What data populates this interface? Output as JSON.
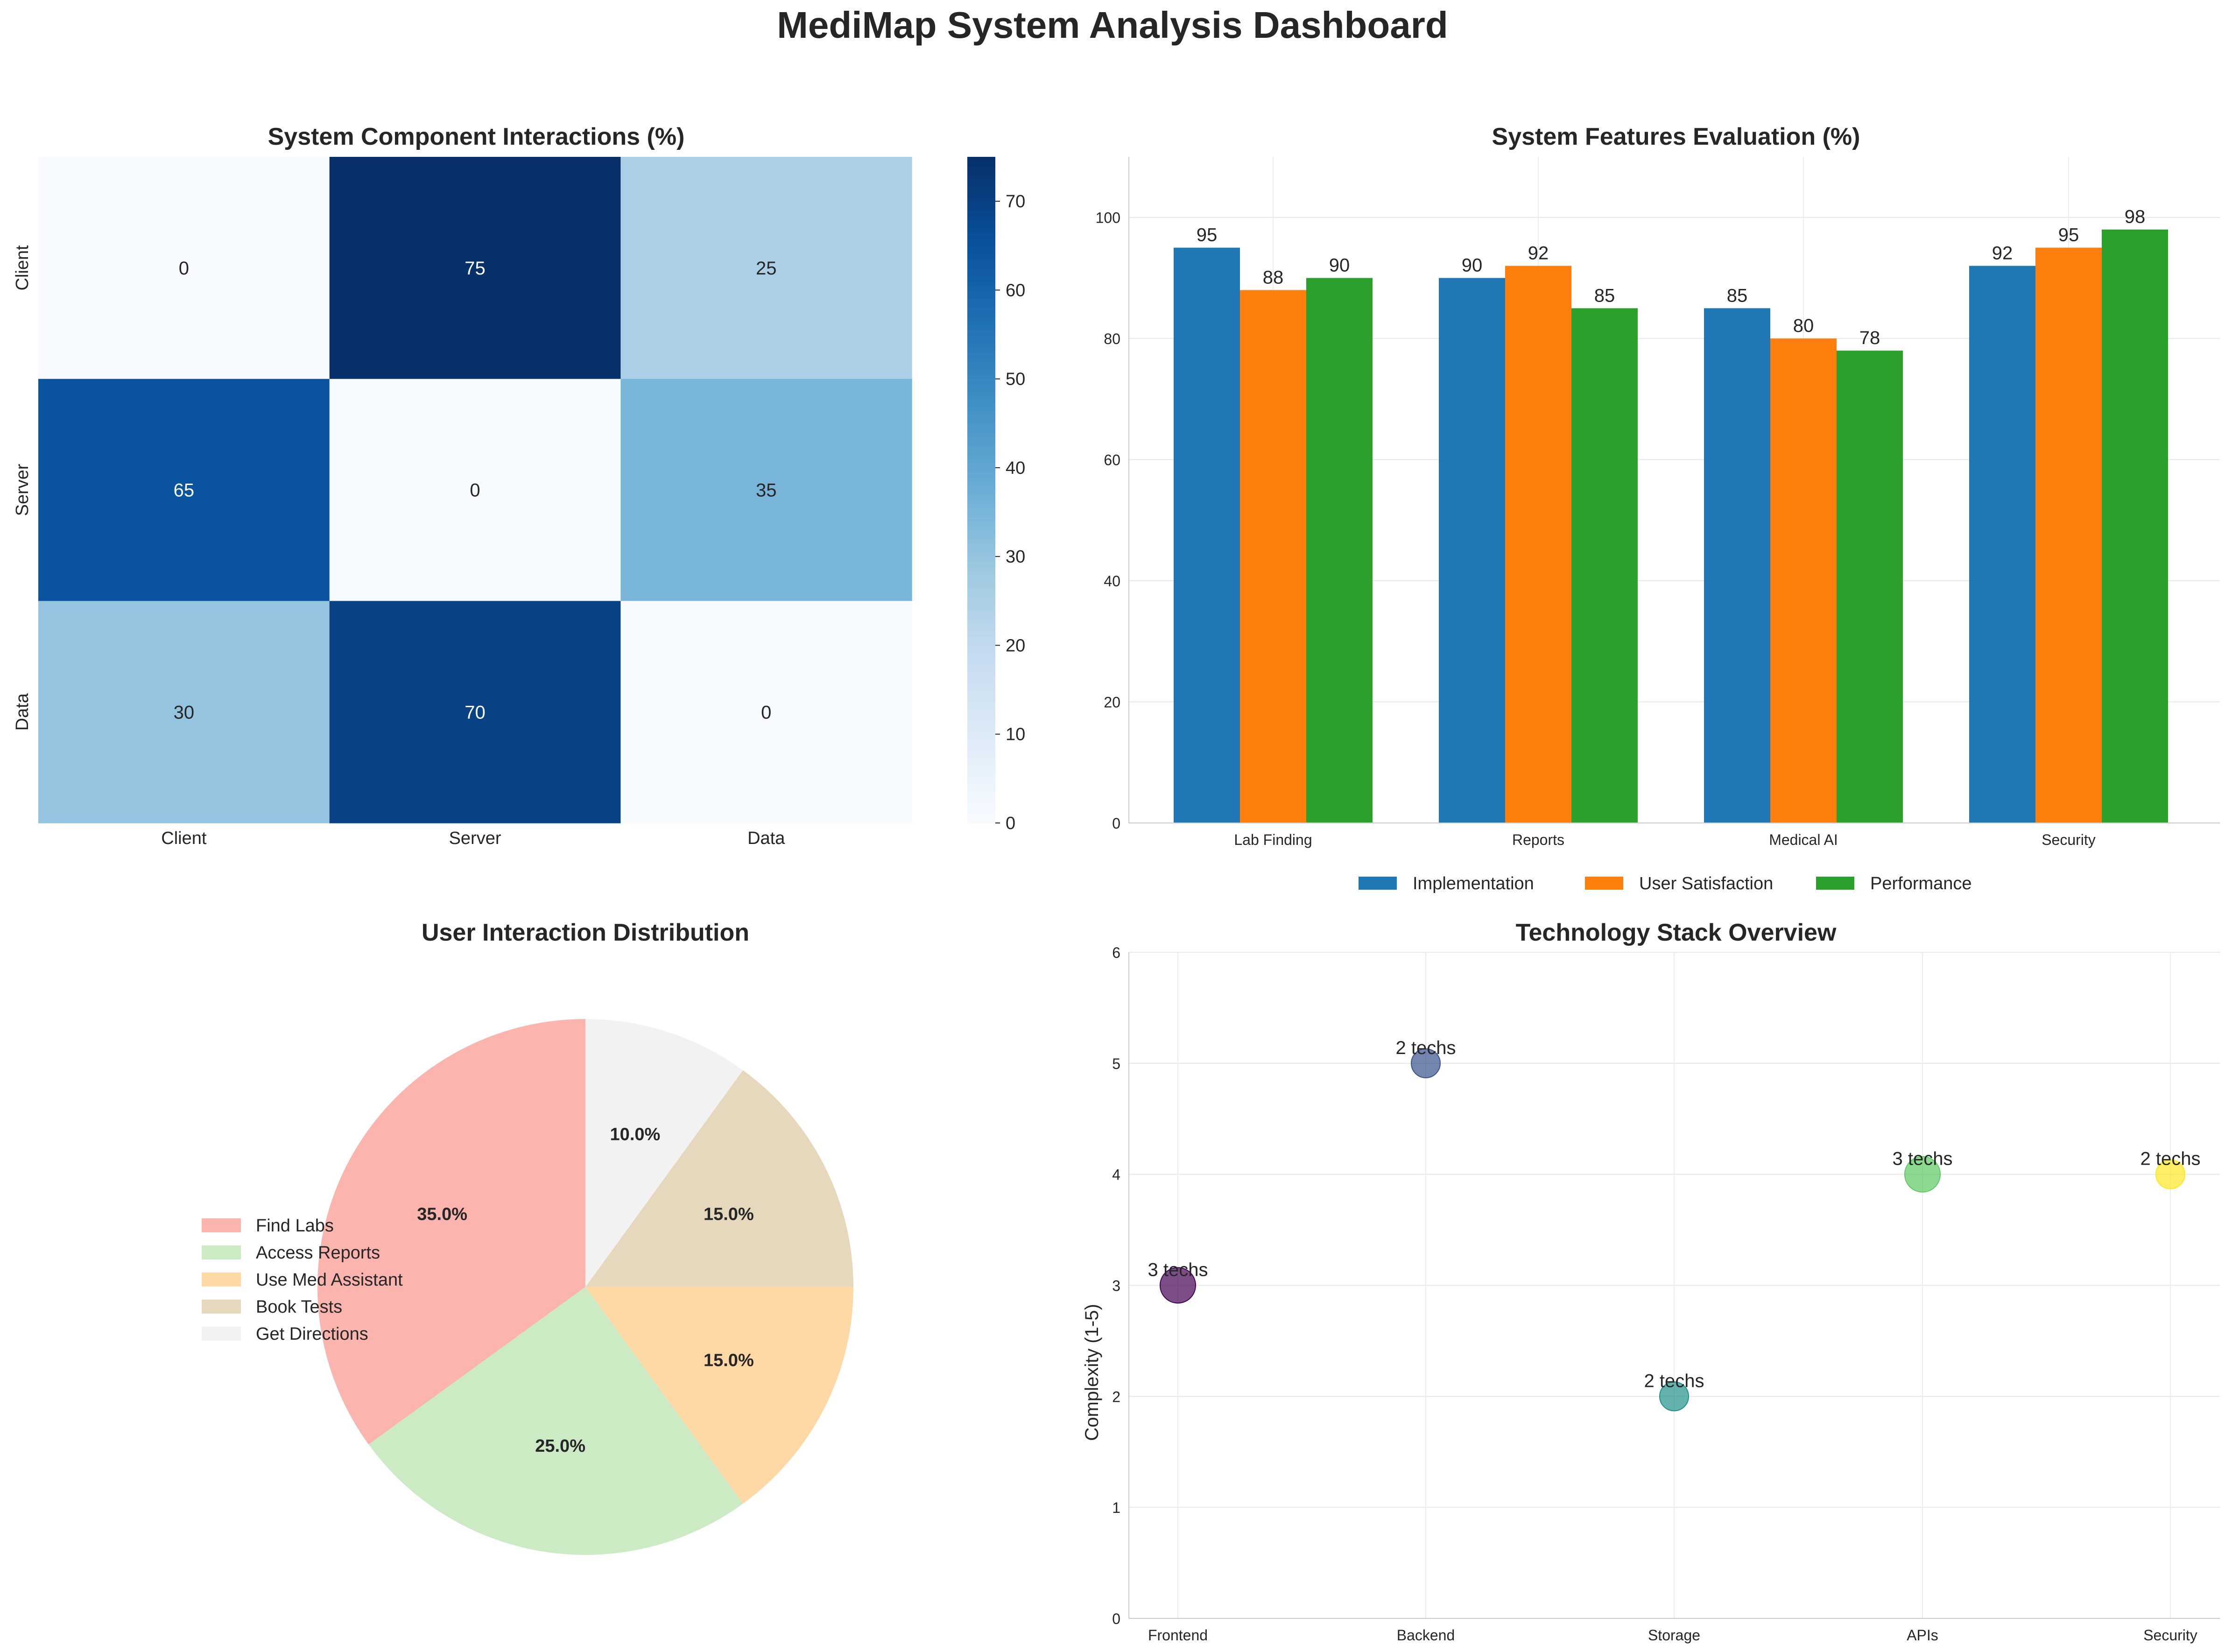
{
  "title": "MediMap System Analysis Dashboard",
  "colors": {
    "implementation": "#1f77b4",
    "satisfaction": "#ff7f0e",
    "performance": "#2ca02c",
    "pie": [
      "#fbb4ae",
      "#ccebc5",
      "#fed9a6",
      "#e5d8bd",
      "#f2f2f2"
    ],
    "bubbles": [
      "#440154",
      "#3b528b",
      "#21918c",
      "#5ec962",
      "#fde725"
    ]
  },
  "chart_data": [
    {
      "type": "heatmap",
      "title": "System Component Interactions (%)",
      "rows": [
        "Client",
        "Server",
        "Data"
      ],
      "cols": [
        "Client",
        "Server",
        "Data"
      ],
      "values": [
        [
          0,
          75,
          25
        ],
        [
          65,
          0,
          35
        ],
        [
          30,
          70,
          0
        ]
      ],
      "colorbar_ticks": [
        0,
        10,
        20,
        30,
        40,
        50,
        60,
        70
      ],
      "vmin": 0,
      "vmax": 75,
      "colormap": "Blues"
    },
    {
      "type": "bar",
      "title": "System Features Evaluation (%)",
      "categories": [
        "Lab Finding",
        "Reports",
        "Medical AI",
        "Security"
      ],
      "series": [
        {
          "name": "Implementation",
          "values": [
            95,
            90,
            85,
            92
          ]
        },
        {
          "name": "User Satisfaction",
          "values": [
            88,
            92,
            80,
            95
          ]
        },
        {
          "name": "Performance",
          "values": [
            90,
            85,
            78,
            98
          ]
        }
      ],
      "ylim": [
        0,
        110
      ],
      "yticks": [
        0,
        20,
        40,
        60,
        80,
        100
      ],
      "grid": true,
      "legend": "bottom"
    },
    {
      "type": "pie",
      "title": "User Interaction Distribution",
      "labels": [
        "Find Labs",
        "Access Reports",
        "Use Med Assistant",
        "Book Tests",
        "Get Directions"
      ],
      "values": [
        35,
        25,
        15,
        15,
        10
      ],
      "pct_labels": [
        "35.0%",
        "25.0%",
        "15.0%",
        "15.0%",
        "10.0%"
      ],
      "legend": "left"
    },
    {
      "type": "scatter",
      "title": "Technology Stack Overview",
      "ylabel": "Complexity (1-5)",
      "categories": [
        "Frontend",
        "Backend",
        "Storage",
        "APIs",
        "Security"
      ],
      "values": [
        3,
        5,
        2,
        4,
        4
      ],
      "tech_counts": [
        3,
        2,
        2,
        3,
        2
      ],
      "annotations": [
        "3 techs",
        "2 techs",
        "2 techs",
        "3 techs",
        "2 techs"
      ],
      "ylim": [
        0,
        6
      ],
      "yticks": [
        0,
        1,
        2,
        3,
        4,
        5,
        6
      ],
      "grid": true
    }
  ]
}
